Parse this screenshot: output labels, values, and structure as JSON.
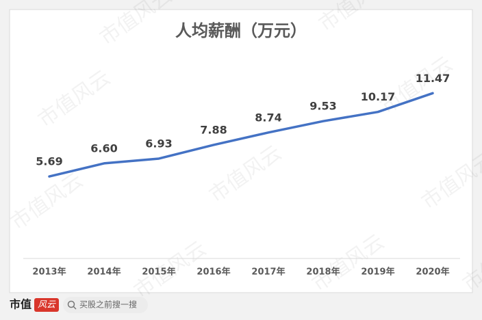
{
  "chart_data": {
    "type": "line",
    "title": "人均薪酬（万元）",
    "categories": [
      "2013年",
      "2014年",
      "2015年",
      "2016年",
      "2017年",
      "2018年",
      "2019年",
      "2020年"
    ],
    "series": [
      {
        "name": "人均薪酬",
        "color": "#4472c4",
        "values": [
          5.69,
          6.6,
          6.93,
          7.88,
          8.74,
          9.53,
          10.17,
          11.47
        ]
      }
    ],
    "value_labels": [
      "5.69",
      "6.60",
      "6.93",
      "7.88",
      "8.74",
      "9.53",
      "10.17",
      "11.47"
    ],
    "ylim": [
      0,
      14
    ],
    "grid": false
  },
  "watermark": "市值风云",
  "footer": {
    "logo": "市值",
    "logo_stamp": "风云",
    "search": "买股之前搜一搜"
  }
}
